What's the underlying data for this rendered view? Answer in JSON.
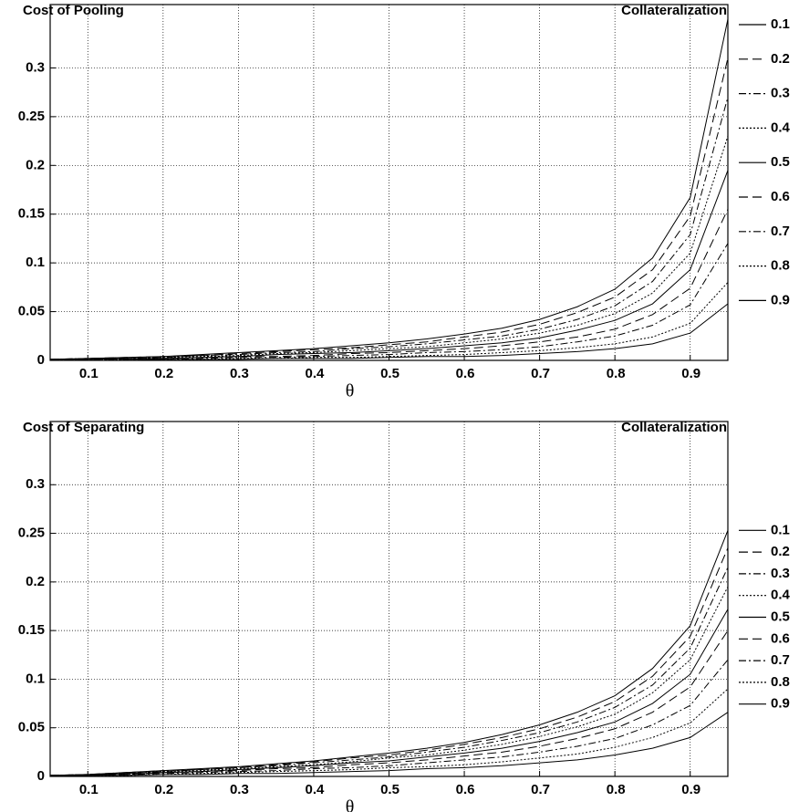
{
  "chart_data": [
    {
      "type": "line",
      "title": "Cost of Pooling",
      "xlabel": "θ",
      "legend_title": "Collateralization",
      "legend": "upper right",
      "grid": true,
      "x": [
        0.05,
        0.1,
        0.15,
        0.2,
        0.25,
        0.3,
        0.35,
        0.4,
        0.45,
        0.5,
        0.55,
        0.6,
        0.65,
        0.7,
        0.75,
        0.8,
        0.85,
        0.9,
        0.95
      ],
      "xlim": [
        0.05,
        0.95
      ],
      "xticks": [
        0.1,
        0.2,
        0.3,
        0.4,
        0.5,
        0.6,
        0.7,
        0.8,
        0.9
      ],
      "ylim": [
        0,
        0.365
      ],
      "yticks": [
        0,
        0.05,
        0.1,
        0.15,
        0.2,
        0.25,
        0.3
      ],
      "series": [
        {
          "name": "0.1",
          "color": "#000000",
          "style": "solid",
          "values": [
            0.001,
            0.002,
            0.003,
            0.004,
            0.006,
            0.008,
            0.01,
            0.012,
            0.015,
            0.018,
            0.022,
            0.027,
            0.033,
            0.042,
            0.055,
            0.073,
            0.105,
            0.167,
            0.35
          ]
        },
        {
          "name": "0.2",
          "color": "#000000",
          "style": "dashed",
          "values": [
            0.001,
            0.002,
            0.003,
            0.004,
            0.005,
            0.007,
            0.009,
            0.011,
            0.013,
            0.016,
            0.019,
            0.024,
            0.029,
            0.037,
            0.049,
            0.065,
            0.093,
            0.148,
            0.31
          ]
        },
        {
          "name": "0.3",
          "color": "#000000",
          "style": "dashdot",
          "values": [
            0.001,
            0.002,
            0.002,
            0.003,
            0.005,
            0.006,
            0.008,
            0.009,
            0.012,
            0.014,
            0.017,
            0.021,
            0.025,
            0.032,
            0.042,
            0.056,
            0.081,
            0.129,
            0.27
          ]
        },
        {
          "name": "0.4",
          "color": "#000000",
          "style": "dotted",
          "values": [
            0.001,
            0.001,
            0.002,
            0.003,
            0.004,
            0.005,
            0.007,
            0.008,
            0.01,
            0.012,
            0.014,
            0.018,
            0.022,
            0.028,
            0.036,
            0.048,
            0.069,
            0.11,
            0.23
          ]
        },
        {
          "name": "0.5",
          "color": "#000000",
          "style": "solid",
          "values": [
            0.001,
            0.001,
            0.002,
            0.002,
            0.003,
            0.004,
            0.006,
            0.007,
            0.008,
            0.01,
            0.012,
            0.015,
            0.018,
            0.023,
            0.031,
            0.041,
            0.058,
            0.093,
            0.195
          ]
        },
        {
          "name": "0.6",
          "color": "#000000",
          "style": "dashed",
          "values": [
            0,
            0.001,
            0.001,
            0.002,
            0.003,
            0.004,
            0.004,
            0.005,
            0.007,
            0.008,
            0.01,
            0.012,
            0.015,
            0.019,
            0.024,
            0.032,
            0.047,
            0.074,
            0.155
          ]
        },
        {
          "name": "0.7",
          "color": "#000000",
          "style": "dashdot",
          "values": [
            0,
            0.001,
            0.001,
            0.001,
            0.002,
            0.003,
            0.003,
            0.004,
            0.005,
            0.006,
            0.008,
            0.009,
            0.011,
            0.014,
            0.019,
            0.025,
            0.036,
            0.057,
            0.12
          ]
        },
        {
          "name": "0.8",
          "color": "#000000",
          "style": "dotted",
          "values": [
            0,
            0,
            0.001,
            0.001,
            0.001,
            0.002,
            0.002,
            0.003,
            0.003,
            0.004,
            0.005,
            0.006,
            0.008,
            0.01,
            0.013,
            0.017,
            0.024,
            0.038,
            0.08
          ]
        },
        {
          "name": "0.9",
          "color": "#000000",
          "style": "solid",
          "values": [
            0,
            0,
            0,
            0.001,
            0.001,
            0.001,
            0.002,
            0.002,
            0.002,
            0.003,
            0.004,
            0.004,
            0.005,
            0.007,
            0.009,
            0.012,
            0.017,
            0.028,
            0.058
          ]
        }
      ]
    },
    {
      "type": "line",
      "title": "Cost of Separating",
      "xlabel": "θ",
      "legend_title": "Collateralization",
      "legend": "right",
      "grid": true,
      "x": [
        0.05,
        0.1,
        0.15,
        0.2,
        0.25,
        0.3,
        0.35,
        0.4,
        0.45,
        0.5,
        0.55,
        0.6,
        0.65,
        0.7,
        0.75,
        0.8,
        0.85,
        0.9,
        0.95
      ],
      "xlim": [
        0.05,
        0.95
      ],
      "xticks": [
        0.1,
        0.2,
        0.3,
        0.4,
        0.5,
        0.6,
        0.7,
        0.8,
        0.9
      ],
      "ylim": [
        0,
        0.365
      ],
      "yticks": [
        0,
        0.05,
        0.1,
        0.15,
        0.2,
        0.25,
        0.3
      ],
      "series": [
        {
          "name": "0.1",
          "color": "#000000",
          "style": "solid",
          "values": [
            0.001,
            0.002,
            0.004,
            0.006,
            0.008,
            0.01,
            0.013,
            0.016,
            0.02,
            0.024,
            0.029,
            0.035,
            0.043,
            0.053,
            0.066,
            0.083,
            0.111,
            0.155,
            0.253
          ]
        },
        {
          "name": "0.2",
          "color": "#000000",
          "style": "dashed",
          "values": [
            0.001,
            0.002,
            0.004,
            0.006,
            0.007,
            0.009,
            0.012,
            0.015,
            0.019,
            0.022,
            0.027,
            0.033,
            0.04,
            0.049,
            0.061,
            0.077,
            0.103,
            0.144,
            0.235
          ]
        },
        {
          "name": "0.3",
          "color": "#000000",
          "style": "dashdot",
          "values": [
            0.001,
            0.002,
            0.003,
            0.005,
            0.007,
            0.009,
            0.011,
            0.014,
            0.017,
            0.02,
            0.025,
            0.03,
            0.037,
            0.045,
            0.056,
            0.071,
            0.094,
            0.132,
            0.215
          ]
        },
        {
          "name": "0.4",
          "color": "#000000",
          "style": "dotted",
          "values": [
            0.001,
            0.002,
            0.003,
            0.005,
            0.006,
            0.008,
            0.01,
            0.012,
            0.015,
            0.019,
            0.022,
            0.027,
            0.033,
            0.041,
            0.051,
            0.064,
            0.086,
            0.12,
            0.195
          ]
        },
        {
          "name": "0.5",
          "color": "#000000",
          "style": "solid",
          "values": [
            0.001,
            0.001,
            0.003,
            0.004,
            0.005,
            0.007,
            0.009,
            0.011,
            0.014,
            0.016,
            0.02,
            0.024,
            0.029,
            0.036,
            0.045,
            0.056,
            0.075,
            0.105,
            0.172
          ]
        },
        {
          "name": "0.6",
          "color": "#000000",
          "style": "dashed",
          "values": [
            0.001,
            0.001,
            0.002,
            0.004,
            0.005,
            0.006,
            0.008,
            0.009,
            0.012,
            0.014,
            0.017,
            0.021,
            0.025,
            0.031,
            0.039,
            0.049,
            0.066,
            0.092,
            0.15
          ]
        },
        {
          "name": "0.7",
          "color": "#000000",
          "style": "dashdot",
          "values": [
            0,
            0.001,
            0.002,
            0.003,
            0.004,
            0.005,
            0.006,
            0.008,
            0.009,
            0.011,
            0.014,
            0.017,
            0.02,
            0.025,
            0.031,
            0.039,
            0.053,
            0.073,
            0.12
          ]
        },
        {
          "name": "0.8",
          "color": "#000000",
          "style": "dotted",
          "values": [
            0,
            0.001,
            0.001,
            0.002,
            0.003,
            0.004,
            0.005,
            0.006,
            0.007,
            0.009,
            0.01,
            0.012,
            0.015,
            0.019,
            0.023,
            0.03,
            0.04,
            0.055,
            0.09
          ]
        },
        {
          "name": "0.9",
          "color": "#000000",
          "style": "solid",
          "values": [
            0,
            0.001,
            0.001,
            0.002,
            0.002,
            0.003,
            0.003,
            0.004,
            0.005,
            0.006,
            0.008,
            0.009,
            0.011,
            0.014,
            0.017,
            0.022,
            0.029,
            0.04,
            0.066
          ]
        }
      ]
    }
  ]
}
